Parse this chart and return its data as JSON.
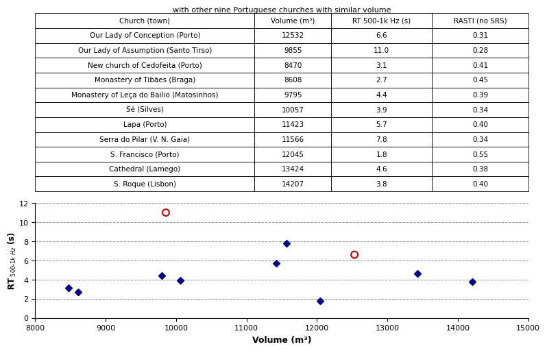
{
  "title_partial": "with other nine Portuguese churches with similar volume",
  "table_headers": [
    "Church (town)",
    "Volume (m³)",
    "RT 500-1k Hz (s)",
    "RASTI (no SRS)"
  ],
  "table_rows": [
    [
      "Our Lady of Conception (Porto)",
      12532,
      6.6,
      "0.31"
    ],
    [
      "Our Lady of Assumption (Santo Tirso)",
      9855,
      11.0,
      "0.28"
    ],
    [
      "New church of Cedofeita (Porto)",
      8470,
      3.1,
      "0.41"
    ],
    [
      "Monastery of Tibães (Braga)",
      8608,
      2.7,
      "0.45"
    ],
    [
      "Monastery of Leça do Bailio (Matosinhos)",
      9795,
      4.4,
      "0.39"
    ],
    [
      "Sé (Silves)",
      10057,
      3.9,
      "0.34"
    ],
    [
      "Lapa (Porto)",
      11423,
      5.7,
      "0.40"
    ],
    [
      "Serra do Pilar (V. N. Gaia)",
      11566,
      7.8,
      "0.34"
    ],
    [
      "S. Francisco (Porto)",
      12045,
      1.8,
      "0.55"
    ],
    [
      "Cathedral (Lamego)",
      13424,
      4.6,
      "0.38"
    ],
    [
      "S. Roque (Lisbon)",
      14207,
      3.8,
      "0.40"
    ]
  ],
  "blue_diamond_points": [
    [
      8608,
      2.7
    ],
    [
      8470,
      3.1
    ],
    [
      9795,
      4.4
    ],
    [
      10057,
      3.9
    ],
    [
      11423,
      5.7
    ],
    [
      11566,
      7.8
    ],
    [
      12045,
      1.8
    ],
    [
      13424,
      4.6
    ],
    [
      14207,
      3.8
    ]
  ],
  "blue_yerr": [
    0.3,
    0.25,
    0.25,
    0.25,
    0.25,
    0.3,
    0.2,
    0.25,
    0.25
  ],
  "red_circle_points": [
    [
      9855,
      11.0
    ],
    [
      12532,
      6.6
    ]
  ],
  "scatter_xlabel": "Volume (m³)",
  "xlim": [
    8000,
    15000
  ],
  "ylim": [
    0,
    12
  ],
  "xticks": [
    8000,
    9000,
    10000,
    11000,
    12000,
    13000,
    14000,
    15000
  ],
  "yticks": [
    0,
    2,
    4,
    6,
    8,
    10,
    12
  ],
  "blue_color": "#00008B",
  "red_color": "#CC0000",
  "background_color": "#ffffff",
  "grid_color": "#888888"
}
